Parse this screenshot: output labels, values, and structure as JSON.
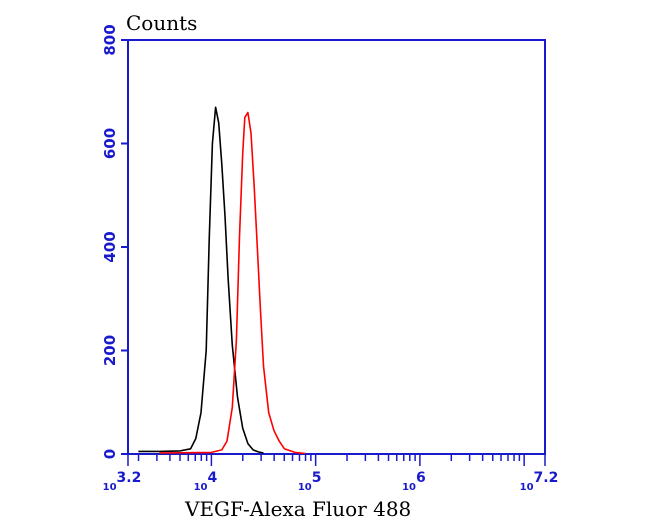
{
  "chart_data": {
    "type": "line",
    "title": "",
    "ylabel": "Counts",
    "xlabel": "VEGF-Alexa Fluor 488",
    "x_scale": "log",
    "xlim": [
      1584.9,
      15848932
    ],
    "ylim": [
      0,
      800
    ],
    "yticks": [
      0,
      200,
      400,
      600,
      800
    ],
    "xticks": [
      {
        "value": 1584.9,
        "base": "10",
        "exp": "3.2"
      },
      {
        "value": 10000,
        "base": "10",
        "exp": "4"
      },
      {
        "value": 100000,
        "base": "10",
        "exp": "5"
      },
      {
        "value": 1000000,
        "base": "10",
        "exp": "6"
      },
      {
        "value": 15848932,
        "base": "10",
        "exp": "7.2"
      }
    ],
    "grid": false,
    "legend": "none",
    "axis_color": "#1a1acd",
    "series": [
      {
        "color": "#000000",
        "x": [
          1995,
          3162,
          5012,
          6310,
          7079,
          7943,
          8912,
          9550,
          10233,
          10965,
          11749,
          12589,
          13490,
          14454,
          15849,
          17783,
          19953,
          22387,
          25119,
          28184,
          31623
        ],
        "y": [
          5,
          5,
          6,
          10,
          30,
          80,
          200,
          420,
          600,
          670,
          640,
          560,
          460,
          340,
          210,
          110,
          50,
          20,
          8,
          4,
          2
        ]
      },
      {
        "color": "#ff0000",
        "x": [
          3162,
          10000,
          12589,
          14125,
          15849,
          17378,
          18621,
          19953,
          20893,
          22387,
          23988,
          25704,
          27542,
          29512,
          31623,
          35481,
          39811,
          44668,
          50119,
          63096,
          79433
        ],
        "y": [
          2,
          3,
          8,
          25,
          90,
          220,
          420,
          580,
          650,
          660,
          620,
          520,
          400,
          280,
          170,
          80,
          45,
          25,
          10,
          3,
          1
        ]
      }
    ]
  }
}
